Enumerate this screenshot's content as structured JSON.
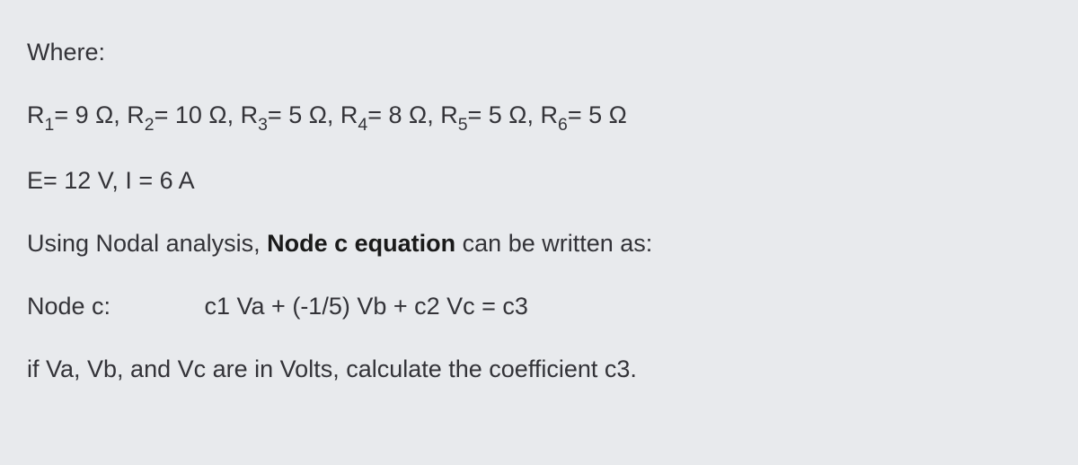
{
  "problem": {
    "where_label": "Where:",
    "resistors": {
      "r1_label": "R",
      "r1_sub": "1",
      "r1_val": "= 9 Ω, ",
      "r2_label": "R",
      "r2_sub": "2",
      "r2_val": "= 10 Ω, ",
      "r3_label": "R",
      "r3_sub": "3",
      "r3_val": "= 5 Ω, ",
      "r4_label": "R",
      "r4_sub": "4",
      "r4_val": "= 8 Ω, ",
      "r5_label": "R",
      "r5_sub": "5",
      "r5_val": "= 5 Ω, ",
      "r6_label": "R",
      "r6_sub": "6",
      "r6_val": "= 5 Ω"
    },
    "sources": "E= 12 V, I = 6 A",
    "instruction_prefix": "Using Nodal analysis, ",
    "instruction_bold": "Node c equation",
    "instruction_suffix": " can be written as:",
    "node_label": "Node c:",
    "equation": "c1 Va + (-1/5) Vb + c2 Vc = c3",
    "question": "if Va, Vb, and Vc are in Volts, calculate the coefficient c3."
  }
}
